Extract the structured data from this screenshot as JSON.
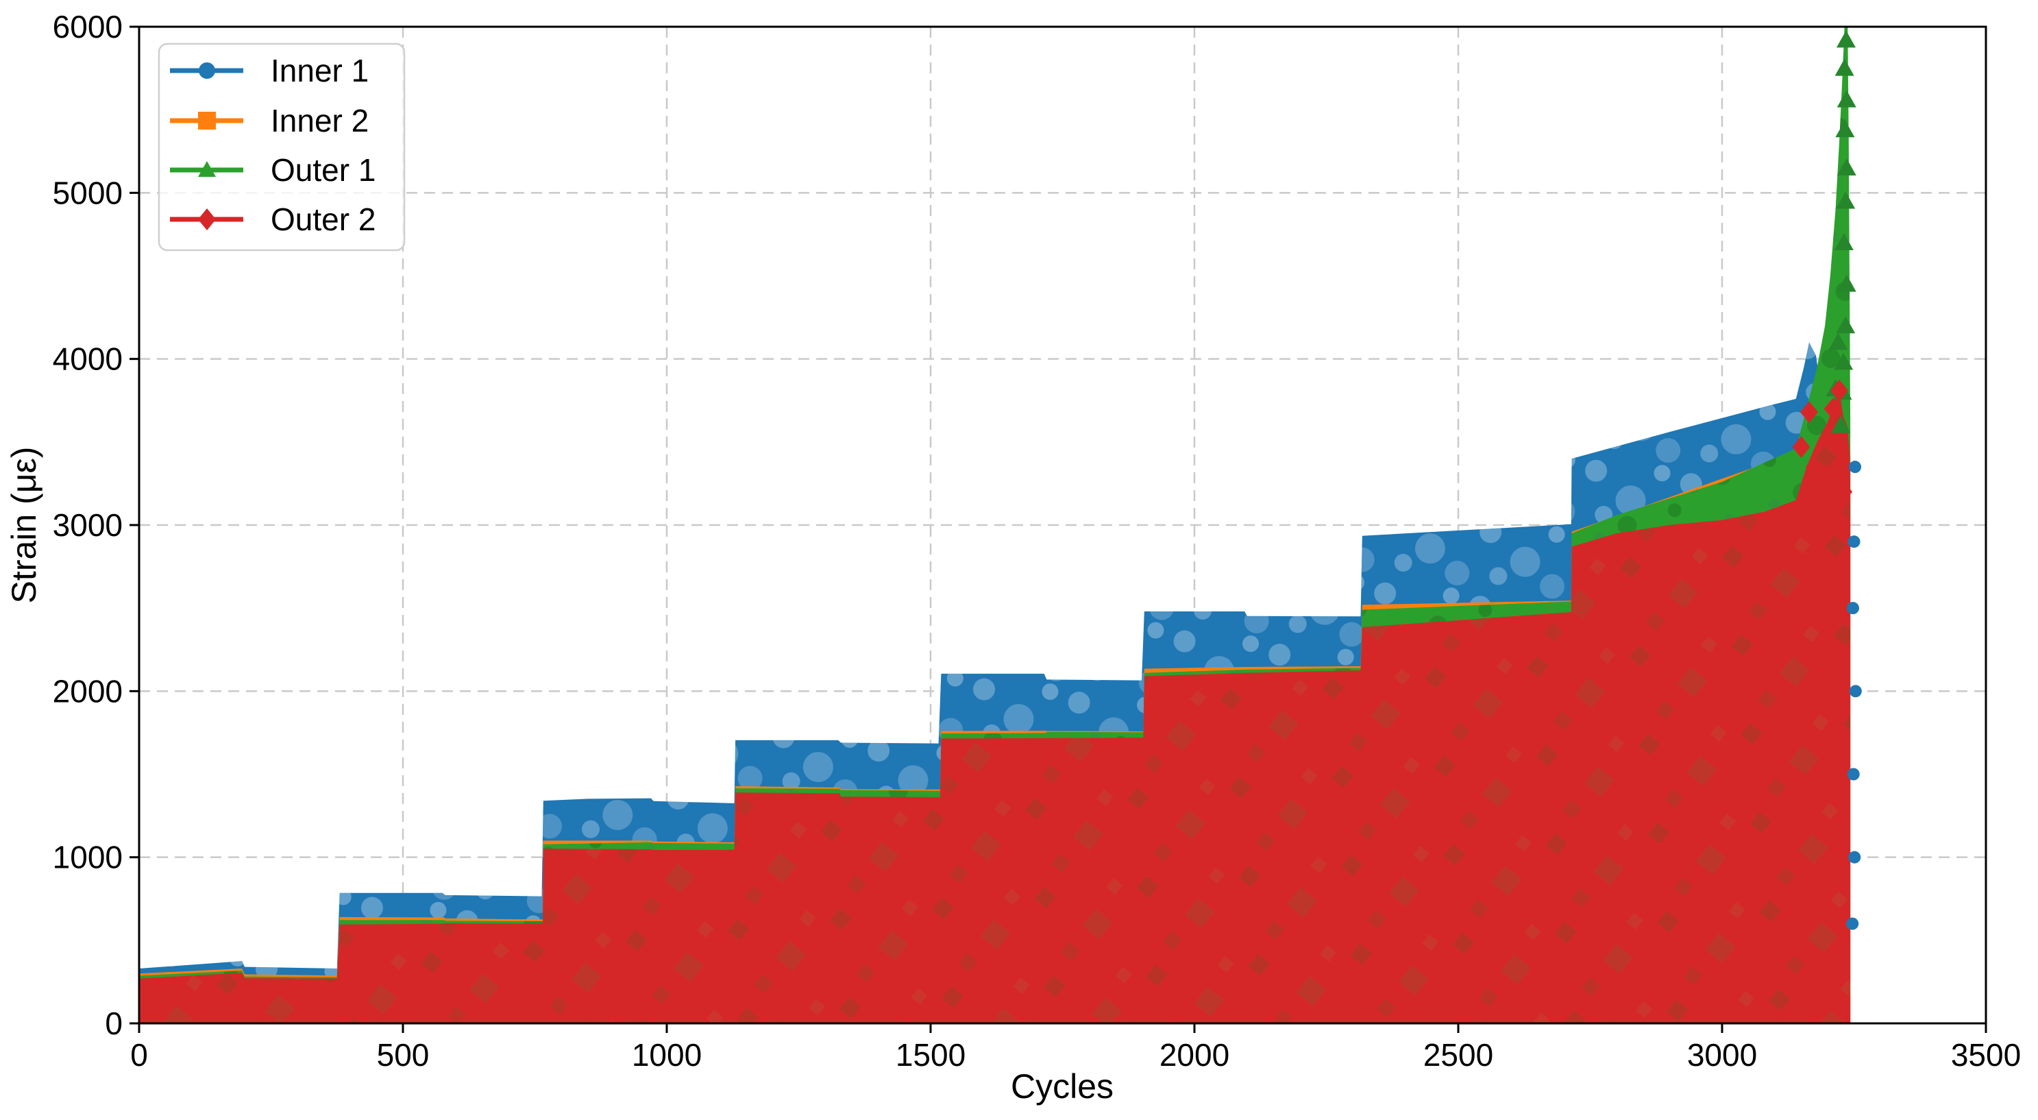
{
  "chart_data": {
    "type": "scatter",
    "title": "",
    "xlabel": "Cycles",
    "ylabel": "Strain (με)",
    "xlim": [
      0,
      3500
    ],
    "ylim": [
      0,
      6000
    ],
    "x_ticks": [
      0,
      500,
      1000,
      1500,
      2000,
      2500,
      3000,
      3500
    ],
    "y_ticks": [
      0,
      1000,
      2000,
      3000,
      4000,
      5000,
      6000
    ],
    "grid": {
      "visible": true,
      "style": "dashed",
      "color": "#c9c9c9"
    },
    "legend": {
      "position": "upper-left",
      "entries": [
        {
          "label": "Inner 1",
          "color": "#1f77b4",
          "marker": "circle"
        },
        {
          "label": "Inner 2",
          "color": "#ff7f0e",
          "marker": "square"
        },
        {
          "label": "Outer 1",
          "color": "#2ca02c",
          "marker": "triangle-up"
        },
        {
          "label": "Outer 2",
          "color": "#d62728",
          "marker": "diamond"
        }
      ]
    },
    "description": "Four strain gauges cycled in a step-loading fatigue test. Each series oscillates every cycle between ~0 and its peak envelope, so the millions of marker points merge into solid filled bands. Load steps rise roughly every 190-400 cycles. Near 3140-3240 cycles the specimen fails: Inner 1 peaks ~4100, Outer 2 spikes to ~3810, and Outer 1 runs off-scale to 6000.",
    "band_note": "peak_envelope points are [cycles, peak strain in microstrain]; each band fills from 0 up to its envelope; draw order blue, orange, green, red.",
    "series": [
      {
        "name": "Inner 1",
        "color": "#1f77b4",
        "marker": "circle",
        "speckle": "pat-blue",
        "peak_envelope": [
          [
            0,
            330
          ],
          [
            195,
            375
          ],
          [
            200,
            340
          ],
          [
            375,
            330
          ],
          [
            380,
            785
          ],
          [
            575,
            785
          ],
          [
            580,
            772
          ],
          [
            763,
            765
          ],
          [
            766,
            1340
          ],
          [
            850,
            1352
          ],
          [
            970,
            1355
          ],
          [
            975,
            1338
          ],
          [
            1128,
            1325
          ],
          [
            1130,
            1705
          ],
          [
            1325,
            1705
          ],
          [
            1330,
            1690
          ],
          [
            1515,
            1685
          ],
          [
            1520,
            2105
          ],
          [
            1715,
            2105
          ],
          [
            1720,
            2070
          ],
          [
            1900,
            2065
          ],
          [
            1905,
            2480
          ],
          [
            2095,
            2480
          ],
          [
            2100,
            2452
          ],
          [
            2315,
            2450
          ],
          [
            2318,
            2935
          ],
          [
            2714,
            3005
          ],
          [
            2715,
            3400
          ],
          [
            2900,
            3560
          ],
          [
            3090,
            3720
          ],
          [
            3140,
            3760
          ],
          [
            3155,
            3950
          ],
          [
            3165,
            4100
          ],
          [
            3178,
            4020
          ],
          [
            3190,
            3750
          ],
          [
            3210,
            3600
          ],
          [
            3230,
            3520
          ],
          [
            3243,
            3420
          ]
        ]
      },
      {
        "name": "Inner 2",
        "color": "#ff7f0e",
        "marker": "square",
        "speckle": null,
        "peak_envelope": [
          [
            0,
            300
          ],
          [
            195,
            330
          ],
          [
            200,
            295
          ],
          [
            375,
            288
          ],
          [
            380,
            640
          ],
          [
            578,
            638
          ],
          [
            580,
            632
          ],
          [
            765,
            625
          ],
          [
            766,
            1100
          ],
          [
            970,
            1100
          ],
          [
            975,
            1095
          ],
          [
            1128,
            1090
          ],
          [
            1130,
            1428
          ],
          [
            1328,
            1420
          ],
          [
            1330,
            1410
          ],
          [
            1518,
            1408
          ],
          [
            1520,
            1760
          ],
          [
            1718,
            1762
          ],
          [
            1720,
            1760
          ],
          [
            1903,
            1758
          ],
          [
            1905,
            2135
          ],
          [
            2100,
            2146
          ],
          [
            2315,
            2150
          ],
          [
            2318,
            2520
          ],
          [
            2714,
            2545
          ],
          [
            2715,
            2960
          ],
          [
            3090,
            3380
          ],
          [
            3140,
            3430
          ],
          [
            3200,
            3500
          ],
          [
            3243,
            3400
          ]
        ]
      },
      {
        "name": "Outer 1",
        "color": "#2ca02c",
        "marker": "triangle-up",
        "speckle": "pat-green",
        "peak_envelope": [
          [
            0,
            287
          ],
          [
            195,
            318
          ],
          [
            200,
            282
          ],
          [
            375,
            278
          ],
          [
            380,
            622
          ],
          [
            578,
            622
          ],
          [
            580,
            618
          ],
          [
            765,
            615
          ],
          [
            766,
            1078
          ],
          [
            970,
            1090
          ],
          [
            975,
            1086
          ],
          [
            1128,
            1082
          ],
          [
            1130,
            1415
          ],
          [
            1328,
            1412
          ],
          [
            1330,
            1404
          ],
          [
            1518,
            1400
          ],
          [
            1520,
            1745
          ],
          [
            1718,
            1748
          ],
          [
            1720,
            1755
          ],
          [
            1903,
            1752
          ],
          [
            1905,
            2110
          ],
          [
            2100,
            2130
          ],
          [
            2315,
            2140
          ],
          [
            2318,
            2490
          ],
          [
            2714,
            2540
          ],
          [
            2715,
            2950
          ],
          [
            2800,
            3060
          ],
          [
            2900,
            3160
          ],
          [
            3000,
            3260
          ],
          [
            3090,
            3390
          ],
          [
            3140,
            3460
          ],
          [
            3160,
            3700
          ],
          [
            3180,
            3950
          ],
          [
            3195,
            4200
          ],
          [
            3205,
            4500
          ],
          [
            3215,
            4900
          ],
          [
            3222,
            5300
          ],
          [
            3228,
            5700
          ],
          [
            3232,
            6000
          ],
          [
            3238,
            6000
          ],
          [
            3240,
            5300
          ],
          [
            3242,
            4200
          ],
          [
            3243,
            3600
          ]
        ]
      },
      {
        "name": "Outer 2",
        "color": "#d62728",
        "marker": "diamond",
        "speckle": "pat-red",
        "peak_envelope": [
          [
            0,
            270
          ],
          [
            195,
            305
          ],
          [
            200,
            272
          ],
          [
            375,
            270
          ],
          [
            380,
            595
          ],
          [
            578,
            600
          ],
          [
            580,
            603
          ],
          [
            765,
            600
          ],
          [
            766,
            1052
          ],
          [
            970,
            1048
          ],
          [
            975,
            1044
          ],
          [
            1128,
            1045
          ],
          [
            1130,
            1390
          ],
          [
            1328,
            1385
          ],
          [
            1330,
            1365
          ],
          [
            1518,
            1362
          ],
          [
            1520,
            1715
          ],
          [
            1718,
            1717
          ],
          [
            1720,
            1717
          ],
          [
            1903,
            1720
          ],
          [
            1905,
            2090
          ],
          [
            2100,
            2110
          ],
          [
            2315,
            2125
          ],
          [
            2318,
            2385
          ],
          [
            2714,
            2476
          ],
          [
            2715,
            2870
          ],
          [
            2800,
            2950
          ],
          [
            2900,
            3000
          ],
          [
            3000,
            3030
          ],
          [
            3080,
            3080
          ],
          [
            3140,
            3150
          ],
          [
            3160,
            3350
          ],
          [
            3180,
            3500
          ],
          [
            3200,
            3620
          ],
          [
            3215,
            3750
          ],
          [
            3222,
            3810
          ],
          [
            3230,
            3650
          ],
          [
            3238,
            3590
          ],
          [
            3242,
            3420
          ],
          [
            3243,
            3200
          ]
        ]
      }
    ],
    "end_event": {
      "cycles": 3240,
      "outer1_spike_max": 6000,
      "outer2_peak": 3810,
      "inner1_peak": 4100
    },
    "failure_markers": {
      "green_triangles": [
        [
          3235,
          5920
        ],
        [
          3232,
          5750
        ],
        [
          3236,
          5560
        ],
        [
          3233,
          5380
        ],
        [
          3236,
          5150
        ],
        [
          3234,
          4950
        ],
        [
          3231,
          4700
        ],
        [
          3236,
          4450
        ],
        [
          3234,
          4200
        ],
        [
          3230,
          3980
        ],
        [
          3228,
          3800
        ],
        [
          3225,
          3600
        ],
        [
          3220,
          4100
        ],
        [
          3215,
          3820
        ]
      ],
      "red_diamonds": [
        [
          3222,
          3810
        ],
        [
          3210,
          3700
        ],
        [
          3165,
          3680
        ],
        [
          3150,
          3470
        ],
        [
          3175,
          3350
        ],
        [
          3195,
          3300
        ],
        [
          3230,
          3200
        ]
      ],
      "blue_circles": [
        [
          3252,
          3350
        ],
        [
          3250,
          2900
        ],
        [
          3248,
          2500
        ],
        [
          3253,
          2000
        ],
        [
          3249,
          1500
        ],
        [
          3251,
          1000
        ],
        [
          3247,
          600
        ]
      ]
    }
  }
}
